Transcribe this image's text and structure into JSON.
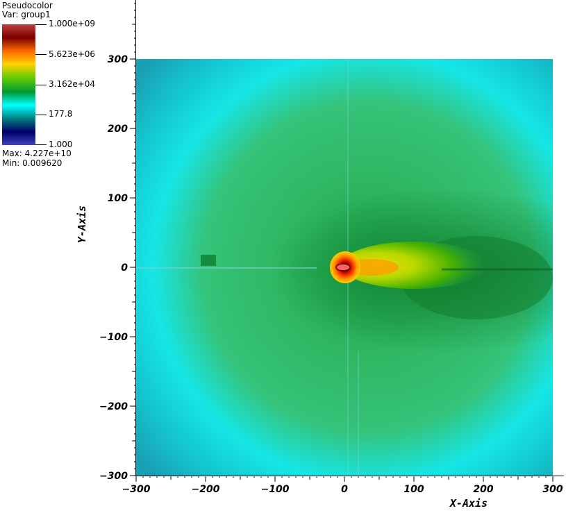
{
  "legend": {
    "title": "Pseudocolor",
    "var_label": "Var: group1",
    "max_label": "Max:  4.227e+10",
    "min_label": "Min:  0.009620"
  },
  "colorbar": {
    "scale": "log",
    "labels": [
      "1.000e+09",
      "5.623e+06",
      "3.162e+04",
      "177.8",
      "1.000"
    ],
    "colors": [
      "#c04040",
      "#7a0000",
      "#ff6600",
      "#ffd200",
      "#66cc00",
      "#009933",
      "#00ffff",
      "#008080",
      "#000066",
      "#4040c0"
    ]
  },
  "chart_data": {
    "type": "heatmap",
    "title": "",
    "xlabel": "X-Axis",
    "ylabel": "Y-Axis",
    "xlim": [
      -300,
      300
    ],
    "ylim": [
      -300,
      300
    ],
    "x_ticks": [
      -300,
      -200,
      -100,
      0,
      100,
      200,
      300
    ],
    "y_ticks": [
      -300,
      -200,
      -100,
      0,
      100,
      200,
      300
    ],
    "x_tick_labels": [
      "−300",
      "−200",
      "−100",
      "0",
      "100",
      "200",
      "300"
    ],
    "y_tick_labels": [
      "−300",
      "−200",
      "−100",
      "0",
      "100",
      "200",
      "300"
    ],
    "y_axis_extends_to": 400,
    "peak_location": [
      0,
      0
    ],
    "colors": {
      "background": "#1aa6b7",
      "cyan": "#16e6e6",
      "light_green": "#35c37a",
      "green": "#1ea54a",
      "dark_green": "#117a2d",
      "yellow": "#e6e000",
      "orange": "#ff8800",
      "red": "#8a0000",
      "peak": "#ff6060"
    }
  }
}
